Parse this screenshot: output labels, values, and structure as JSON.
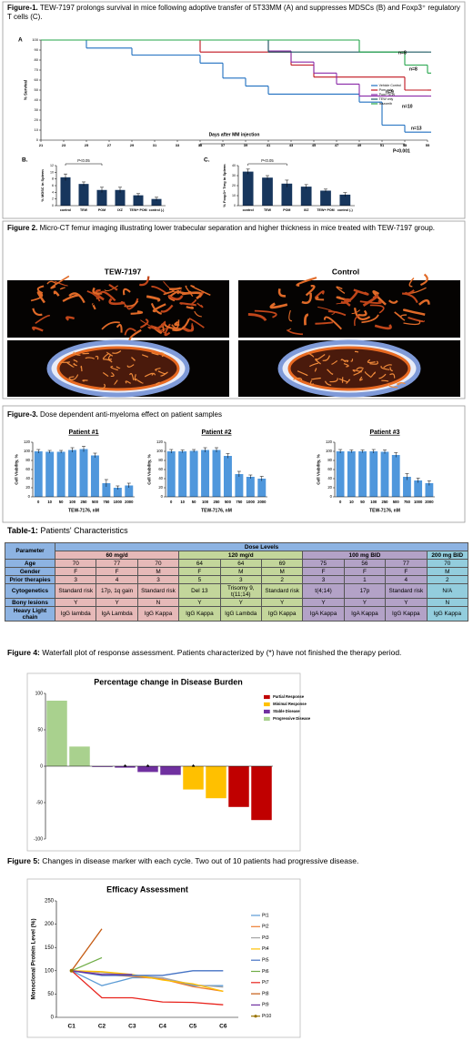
{
  "captions": [
    {
      "label": "Figure-1.",
      "text": "TEW-7197 prolongs survival in mice following adoptive transfer of 5T33MM (A) and suppresses MDSCs (B) and Foxp3⁺ regulatory T cells (C)."
    },
    {
      "label": "Figure 2.",
      "text": "Micro-CT femur imaging illustrating lower trabecular separation and higher thickness in mice treated with TEW-7197 group."
    },
    {
      "label": "Figure-3.",
      "text": "Dose dependent anti-myeloma effect on patient samples"
    },
    {
      "label": "Figure 4:",
      "text": "Waterfall plot of response assessment. Patients characterized by (*) have not finished the therapy period."
    },
    {
      "label": "Figure 5:",
      "text": "Changes in disease marker with each cycle. Two out of 10 patients had progressive disease."
    }
  ],
  "figure2": {
    "columns": [
      "TEW-7197",
      "Control"
    ]
  },
  "chart_data": [
    {
      "type": "line",
      "step": true,
      "panel": "A",
      "ylabel": "% Survival",
      "xlabel": "Days after MM injection",
      "x": [
        21,
        23,
        25,
        27,
        29,
        31,
        33,
        35,
        37,
        39,
        41,
        43,
        45,
        47,
        49,
        51,
        53,
        55
      ],
      "xlim": [
        21,
        55
      ],
      "xticks": [
        21,
        23,
        25,
        27,
        29,
        31,
        33,
        35,
        37,
        39,
        41,
        43,
        45,
        47,
        49,
        51,
        53,
        55
      ],
      "ylim": [
        0,
        100
      ],
      "yticks": [
        0,
        10,
        20,
        30,
        40,
        50,
        60,
        70,
        80,
        90,
        100
      ],
      "grid": false,
      "legend": "center right",
      "series": [
        {
          "name": "Vehicle Control",
          "color": "#1f6fc0",
          "values": [
            100,
            100,
            92,
            92,
            85,
            85,
            85,
            77,
            62,
            54,
            46,
            46,
            46,
            46,
            38,
            15,
            8,
            8
          ]
        },
        {
          "name": "Pom only",
          "color": "#c0141e",
          "values": [
            100,
            100,
            100,
            100,
            100,
            100,
            100,
            88,
            88,
            88,
            88,
            75,
            63,
            63,
            63,
            63,
            50,
            50
          ]
        },
        {
          "name": "Pom+TEW",
          "color": "#8a2aa8",
          "values": [
            100,
            100,
            100,
            100,
            100,
            100,
            100,
            100,
            100,
            100,
            89,
            78,
            67,
            56,
            44,
            44,
            44,
            44
          ]
        },
        {
          "name": "TEW only",
          "color": "#1d5a62",
          "values": [
            100,
            100,
            100,
            100,
            100,
            100,
            100,
            100,
            100,
            100,
            88,
            88,
            88,
            88,
            88,
            88,
            88,
            88
          ]
        },
        {
          "name": "Ixazomib",
          "color": "#23a54a",
          "values": [
            100,
            100,
            100,
            100,
            100,
            100,
            100,
            100,
            100,
            100,
            100,
            100,
            100,
            100,
            88,
            88,
            75,
            67
          ]
        }
      ],
      "annotations": [
        "n=8",
        "n=8",
        "n=9",
        "n=10",
        "n=13",
        "P<0.001"
      ]
    },
    {
      "type": "bar",
      "panel": "B.",
      "ylabel": "% MDSC in Spleen",
      "annotation": "P<0.05",
      "categories": [
        "control",
        "TEW",
        "POM",
        "IXZ",
        "TEW+ POM",
        "control (-)"
      ],
      "values": [
        8.5,
        6.5,
        4.7,
        4.7,
        3.1,
        2
      ],
      "errors": [
        1,
        0.6,
        0.8,
        0.8,
        0.5,
        0.5
      ],
      "color": "#17365d",
      "ylim": [
        0,
        12
      ],
      "yticks": [
        0,
        2,
        4,
        6,
        8,
        10,
        12
      ],
      "grid": false
    },
    {
      "type": "bar",
      "panel": "C.",
      "ylabel": "% Foxp3+ Treg in Spleen",
      "annotation": "P<0.05",
      "categories": [
        "control",
        "TEW",
        "POM",
        "IXZ",
        "TEW+ POM",
        "control (-)"
      ],
      "values": [
        34,
        28,
        22,
        19,
        15,
        11
      ],
      "errors": [
        2.5,
        2,
        3.5,
        2,
        1.5,
        2
      ],
      "color": "#17365d",
      "ylim": [
        0,
        40
      ],
      "yticks": [
        0,
        10,
        20,
        30,
        40
      ],
      "grid": false
    },
    {
      "type": "bar",
      "title": "Patient #1",
      "ylabel": "Cell Viability, %",
      "xlabel": "TEW-7176, nM",
      "categories": [
        "0",
        "10",
        "50",
        "100",
        "250",
        "500",
        "750",
        "1000",
        "2000"
      ],
      "values": [
        100,
        99,
        99,
        103,
        105,
        91,
        30,
        20,
        25
      ],
      "errors": [
        4,
        3,
        3,
        5,
        6,
        5,
        8,
        4,
        5
      ],
      "color": "#4f97dc",
      "ylim": [
        0,
        120
      ],
      "yticks": [
        0,
        20,
        40,
        60,
        80,
        100,
        120
      ],
      "grid": false
    },
    {
      "type": "bar",
      "title": "Patient #2",
      "ylabel": "Cell Viability, %",
      "xlabel": "TEW-7176, nM",
      "categories": [
        "0",
        "10",
        "50",
        "100",
        "250",
        "500",
        "750",
        "1000",
        "2000"
      ],
      "values": [
        100,
        100,
        101,
        103,
        103,
        90,
        50,
        44,
        40
      ],
      "errors": [
        4,
        3,
        3,
        5,
        5,
        5,
        6,
        4,
        5
      ],
      "color": "#4f97dc",
      "ylim": [
        0,
        120
      ],
      "yticks": [
        0,
        20,
        40,
        60,
        80,
        100,
        120
      ],
      "grid": false
    },
    {
      "type": "bar",
      "title": "Patient #3",
      "ylabel": "Cell Viability, %",
      "xlabel": "TEW-7176, nM",
      "categories": [
        "0",
        "10",
        "50",
        "100",
        "250",
        "500",
        "750",
        "1000",
        "2000"
      ],
      "values": [
        100,
        100,
        100,
        100,
        99,
        92,
        44,
        36,
        30
      ],
      "errors": [
        4,
        3,
        3,
        4,
        4,
        5,
        7,
        5,
        5
      ],
      "color": "#4f97dc",
      "ylim": [
        0,
        120
      ],
      "yticks": [
        0,
        20,
        40,
        60,
        80,
        100,
        120
      ],
      "grid": false
    },
    {
      "type": "bar",
      "title": "Percentage change in Disease Burden",
      "legend": "upper right",
      "categories": [
        null,
        null,
        null,
        null,
        null,
        null,
        null,
        null,
        null,
        null
      ],
      "series": [
        {
          "name": "Partial Response",
          "color": "#c00000",
          "values": [
            null,
            null,
            null,
            null,
            null,
            null,
            null,
            null,
            -56,
            -74
          ]
        },
        {
          "name": "Minimal Response",
          "color": "#ffc000",
          "values": [
            null,
            null,
            null,
            null,
            null,
            null,
            -32,
            -44,
            null,
            null
          ]
        },
        {
          "name": "Stable Disease",
          "color": "#7030a0",
          "values": [
            null,
            null,
            -1,
            -2,
            -8,
            -12,
            null,
            null,
            null,
            null
          ]
        },
        {
          "name": "Progressive Disease",
          "color": "#a9d18e",
          "values": [
            90,
            27,
            null,
            null,
            null,
            null,
            null,
            null,
            null,
            null
          ]
        }
      ],
      "flags": [
        null,
        null,
        null,
        "*",
        "*",
        null,
        "*",
        null,
        null,
        null
      ],
      "ylim": [
        -100,
        100
      ],
      "yticks": [
        -100,
        -50,
        0,
        50,
        100
      ],
      "grid": false
    },
    {
      "type": "line",
      "title": "Efficacy Assessment",
      "ylabel": "Monoclonal Protein Level (%)",
      "legend": "right",
      "categories": [
        "C1",
        "C2",
        "C3",
        "C4",
        "C5",
        "C6"
      ],
      "ylim": [
        0,
        250
      ],
      "yticks": [
        0,
        50,
        100,
        150,
        200,
        250
      ],
      "grid": false,
      "series": [
        {
          "name": "Pt1",
          "color": "#5b9bd5",
          "values": [
            100,
            68,
            85,
            85,
            68,
            68
          ]
        },
        {
          "name": "Pt2",
          "color": "#ed7d31",
          "values": [
            100,
            92,
            88,
            82,
            66,
            56
          ]
        },
        {
          "name": "Pt3",
          "color": "#a5a5a5",
          "values": [
            100,
            96,
            90,
            85,
            70,
            65
          ]
        },
        {
          "name": "Pt4",
          "color": "#ffc000",
          "values": [
            100,
            98,
            92,
            80,
            72,
            56
          ]
        },
        {
          "name": "Pt5",
          "color": "#4472c4",
          "values": [
            100,
            90,
            90,
            90,
            100,
            100
          ]
        },
        {
          "name": "Pt6",
          "color": "#70ad47",
          "values": [
            100,
            128,
            null,
            null,
            null,
            null
          ]
        },
        {
          "name": "Pt7",
          "color": "#e8231c",
          "values": [
            100,
            42,
            42,
            33,
            32,
            27
          ]
        },
        {
          "name": "Pt8",
          "color": "#c55a11",
          "values": [
            100,
            190,
            null,
            null,
            null,
            null
          ]
        },
        {
          "name": "Pt9",
          "color": "#7030a0",
          "values": [
            100,
            92,
            92,
            null,
            null,
            null
          ]
        },
        {
          "name": "Pt10",
          "color": "#997300",
          "marker": true,
          "values": [
            100,
            null,
            null,
            null,
            null,
            null
          ]
        }
      ]
    }
  ],
  "table": {
    "title_label": "Table-1:",
    "title": "Patients' Characteristics",
    "parameter_header": "Parameter",
    "dose_header": "Dose Levels",
    "groups": [
      {
        "name": "60 mg/d",
        "span": 3,
        "color": "#e6b9b8"
      },
      {
        "name": "120 mg/d",
        "span": 3,
        "color": "#c3d69b"
      },
      {
        "name": "100 mg BID",
        "span": 3,
        "color": "#b3a2c7"
      },
      {
        "name": "200 mg BID",
        "span": 1,
        "color": "#93cddd"
      }
    ],
    "rows": [
      {
        "label": "Age",
        "cells": [
          "70",
          "77",
          "70",
          "64",
          "64",
          "69",
          "75",
          "56",
          "77",
          "70"
        ]
      },
      {
        "label": "Gender",
        "cells": [
          "F",
          "F",
          "M",
          "F",
          "M",
          "M",
          "F",
          "F",
          "F",
          "M"
        ]
      },
      {
        "label": "Prior therapies",
        "cells": [
          "3",
          "4",
          "3",
          "5",
          "3",
          "2",
          "3",
          "1",
          "4",
          "2"
        ]
      },
      {
        "label": "Cytogenetics",
        "cells": [
          "Standard risk",
          "17p, 1q gain",
          "Standard risk",
          "Del 13",
          "Trisomy 9, t(11;14)",
          "Standard risk",
          "t(4;14)",
          "17p",
          "Standard risk",
          "N/A"
        ]
      },
      {
        "label": "Bony lesions",
        "cells": [
          "Y",
          "Y",
          "N",
          "Y",
          "Y",
          "Y",
          "Y",
          "Y",
          "Y",
          "N"
        ]
      },
      {
        "label": "Heavy Light chain",
        "cells": [
          "IgG lambda",
          "IgA Lambda",
          "IgG Kappa",
          "IgG Kappa",
          "IgG Lambda",
          "IgG Kappa",
          "IgA Kappa",
          "IgA Kappa",
          "IgG Kappa",
          "IgG Kappa"
        ]
      }
    ]
  }
}
